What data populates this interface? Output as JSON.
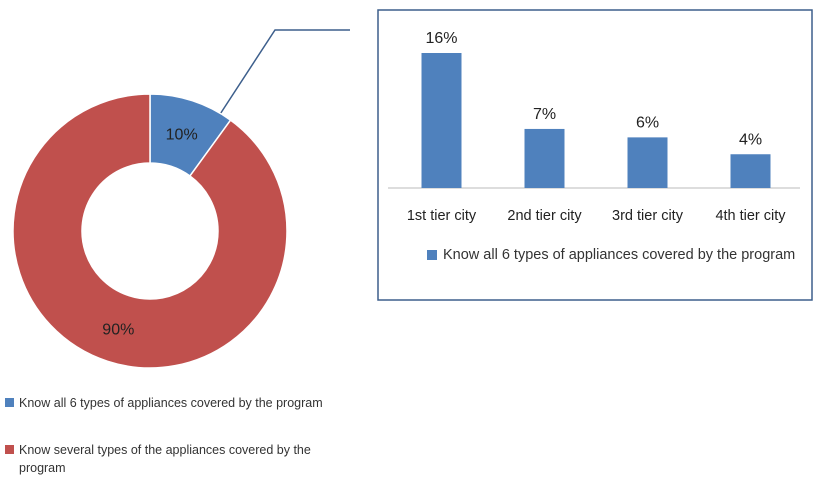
{
  "chart_data": [
    {
      "type": "donut",
      "categories": [
        "Know all 6 types of appliances covered by the program",
        "Know several types of the appliances covered by the program"
      ],
      "values": [
        10,
        90
      ],
      "value_labels": [
        "10%",
        "90%"
      ],
      "colors": [
        "#4f81bd",
        "#c0504d"
      ]
    },
    {
      "type": "bar",
      "categories": [
        "1st tier city",
        "2nd tier city",
        "3rd tier city",
        "4th tier city"
      ],
      "series": [
        {
          "name": "Know all 6 types of appliances covered by the program",
          "color": "#4f81bd",
          "values": [
            16,
            7,
            6,
            4
          ],
          "value_labels": [
            "16%",
            "7%",
            "6%",
            "4%"
          ]
        }
      ]
    }
  ]
}
